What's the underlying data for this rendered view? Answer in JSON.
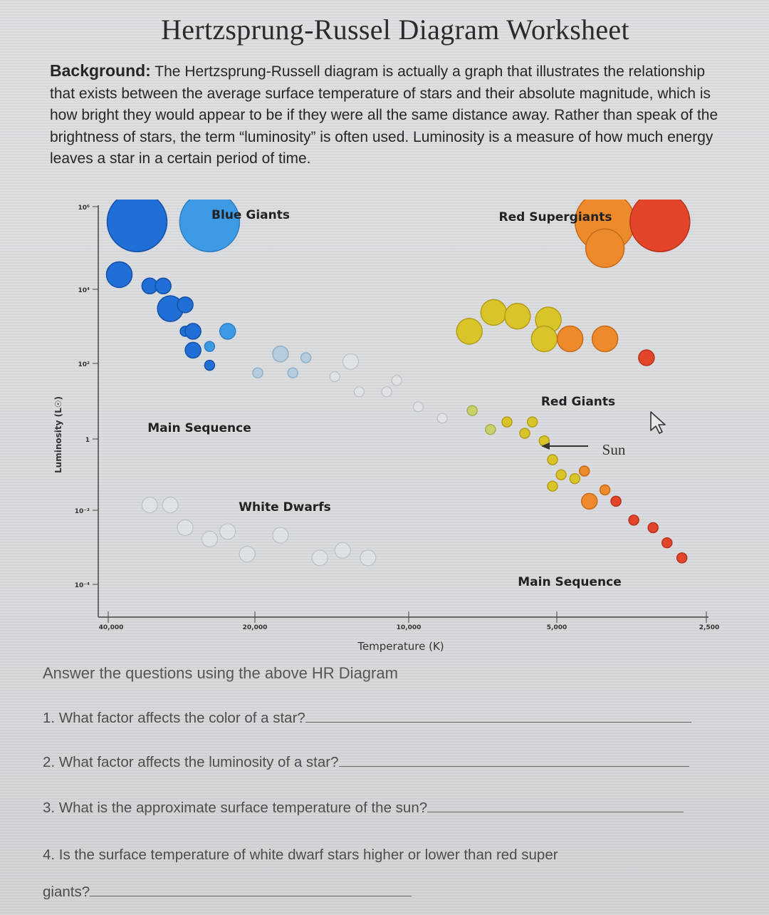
{
  "worksheet": {
    "title": "Hertzsprung-Russel Diagram Worksheet",
    "background_label": "Background:",
    "background_text": " The Hertzsprung-Russell diagram is actually a graph that illustrates the relationship that exists between the average surface temperature of stars and their absolute magnitude, which is how bright they would appear to be if they were all the same distance away. Rather than speak of the brightness of stars, the term “luminosity” is often used. Luminosity is a measure of how much energy leaves a star in a certain period of time.",
    "answer_intro": "Answer the questions using the above HR Diagram",
    "questions": [
      "1. What factor affects the color of a star?",
      "2. What factor affects the luminosity of a star?",
      "3. What is the approximate surface temperature of the sun?",
      "4. Is the surface temperature of white dwarf stars higher or lower than red super",
      "giants?"
    ]
  },
  "chart_data": {
    "type": "scatter",
    "xlabel": "Temperature (K)",
    "ylabel": "Luminosity (L☉)",
    "x_ticks": [
      "40,000",
      "20,000",
      "10,000",
      "5,000",
      "2,500"
    ],
    "y_ticks": [
      "10⁶",
      "10⁴",
      "10²",
      "1",
      "10⁻²",
      "10⁻⁴"
    ],
    "x_reversed": true,
    "y_scale": "log",
    "annotations": [
      "Blue Giants",
      "Red Supergiants",
      "Main Sequence",
      "Red Giants",
      "Sun",
      "White Dwarfs",
      "Main Sequence"
    ],
    "colors": {
      "blue": "#1f6fd6",
      "light_blue": "#3d9be6",
      "faint_blue": "#a8c6dd",
      "white": "#e8edf0",
      "yellow_green": "#c9d16a",
      "yellow": "#d9c52a",
      "orange": "#ec8a2c",
      "red": "#e2452a"
    },
    "stars": [
      {
        "temp": 35000,
        "lum_exp": 5.6,
        "color": "blue",
        "size": "giant"
      },
      {
        "temp": 25000,
        "lum_exp": 5.6,
        "color": "light_blue",
        "size": "giant"
      },
      {
        "temp": 4000,
        "lum_exp": 5.6,
        "color": "orange",
        "size": "giant"
      },
      {
        "temp": 3100,
        "lum_exp": 5.6,
        "color": "red",
        "size": "giant"
      },
      {
        "temp": 4000,
        "lum_exp": 4.9,
        "color": "orange",
        "size": "large"
      },
      {
        "temp": 38000,
        "lum_exp": 4.2,
        "color": "blue",
        "size": "med"
      },
      {
        "temp": 33000,
        "lum_exp": 3.9,
        "color": "blue",
        "size": "small"
      },
      {
        "temp": 31000,
        "lum_exp": 3.9,
        "color": "blue",
        "size": "small"
      },
      {
        "temp": 30000,
        "lum_exp": 3.3,
        "color": "blue",
        "size": "med"
      },
      {
        "temp": 28000,
        "lum_exp": 3.4,
        "color": "blue",
        "size": "small"
      },
      {
        "temp": 28000,
        "lum_exp": 2.7,
        "color": "blue",
        "size": "xsmall"
      },
      {
        "temp": 27000,
        "lum_exp": 2.7,
        "color": "blue",
        "size": "small"
      },
      {
        "temp": 23000,
        "lum_exp": 2.7,
        "color": "light_blue",
        "size": "small"
      },
      {
        "temp": 27000,
        "lum_exp": 2.2,
        "color": "blue",
        "size": "small"
      },
      {
        "temp": 25000,
        "lum_exp": 2.3,
        "color": "light_blue",
        "size": "xsmall"
      },
      {
        "temp": 25000,
        "lum_exp": 1.8,
        "color": "blue",
        "size": "xsmall"
      },
      {
        "temp": 20000,
        "lum_exp": 1.6,
        "color": "faint_blue",
        "size": "xsmall"
      },
      {
        "temp": 18000,
        "lum_exp": 2.1,
        "color": "faint_blue",
        "size": "small"
      },
      {
        "temp": 17000,
        "lum_exp": 1.6,
        "color": "faint_blue",
        "size": "xsmall"
      },
      {
        "temp": 16000,
        "lum_exp": 2.0,
        "color": "faint_blue",
        "size": "xsmall"
      },
      {
        "temp": 14000,
        "lum_exp": 1.5,
        "color": "white",
        "size": "xsmall"
      },
      {
        "temp": 13000,
        "lum_exp": 1.9,
        "color": "white",
        "size": "small"
      },
      {
        "temp": 12500,
        "lum_exp": 1.1,
        "color": "white",
        "size": "xsmall"
      },
      {
        "temp": 11000,
        "lum_exp": 1.1,
        "color": "white",
        "size": "xsmall"
      },
      {
        "temp": 10500,
        "lum_exp": 1.4,
        "color": "white",
        "size": "xsmall"
      },
      {
        "temp": 9500,
        "lum_exp": 0.7,
        "color": "white",
        "size": "xsmall"
      },
      {
        "temp": 8500,
        "lum_exp": 0.4,
        "color": "white",
        "size": "xsmall"
      },
      {
        "temp": 7500,
        "lum_exp": 2.7,
        "color": "yellow",
        "size": "med"
      },
      {
        "temp": 6700,
        "lum_exp": 3.2,
        "color": "yellow",
        "size": "med"
      },
      {
        "temp": 6000,
        "lum_exp": 3.1,
        "color": "yellow",
        "size": "med"
      },
      {
        "temp": 5200,
        "lum_exp": 3.0,
        "color": "yellow",
        "size": "med"
      },
      {
        "temp": 5300,
        "lum_exp": 2.5,
        "color": "yellow",
        "size": "med"
      },
      {
        "temp": 4700,
        "lum_exp": 2.5,
        "color": "orange",
        "size": "med"
      },
      {
        "temp": 4000,
        "lum_exp": 2.5,
        "color": "orange",
        "size": "med"
      },
      {
        "temp": 3300,
        "lum_exp": 2.0,
        "color": "red",
        "size": "small"
      },
      {
        "temp": 7400,
        "lum_exp": 0.6,
        "color": "yellow_green",
        "size": "xsmall"
      },
      {
        "temp": 6800,
        "lum_exp": 0.1,
        "color": "yellow_green",
        "size": "xsmall"
      },
      {
        "temp": 6300,
        "lum_exp": 0.3,
        "color": "yellow",
        "size": "xsmall"
      },
      {
        "temp": 5800,
        "lum_exp": 0.0,
        "color": "yellow",
        "size": "xsmall"
      },
      {
        "temp": 5600,
        "lum_exp": 0.3,
        "color": "yellow",
        "size": "xsmall"
      },
      {
        "temp": 5300,
        "lum_exp": -0.2,
        "color": "yellow",
        "size": "xsmall"
      },
      {
        "temp": 5100,
        "lum_exp": -0.7,
        "color": "yellow",
        "size": "xsmall"
      },
      {
        "temp": 4900,
        "lum_exp": -1.1,
        "color": "yellow",
        "size": "xsmall"
      },
      {
        "temp": 5100,
        "lum_exp": -1.4,
        "color": "yellow",
        "size": "xsmall"
      },
      {
        "temp": 4600,
        "lum_exp": -1.2,
        "color": "yellow",
        "size": "xsmall"
      },
      {
        "temp": 4400,
        "lum_exp": -1.0,
        "color": "orange",
        "size": "xsmall"
      },
      {
        "temp": 4300,
        "lum_exp": -1.8,
        "color": "orange",
        "size": "small"
      },
      {
        "temp": 4000,
        "lum_exp": -1.5,
        "color": "orange",
        "size": "xsmall"
      },
      {
        "temp": 3800,
        "lum_exp": -1.8,
        "color": "red",
        "size": "xsmall"
      },
      {
        "temp": 3500,
        "lum_exp": -2.3,
        "color": "red",
        "size": "xsmall"
      },
      {
        "temp": 3200,
        "lum_exp": -2.5,
        "color": "red",
        "size": "xsmall"
      },
      {
        "temp": 3000,
        "lum_exp": -2.9,
        "color": "red",
        "size": "xsmall"
      },
      {
        "temp": 2800,
        "lum_exp": -3.3,
        "color": "red",
        "size": "xsmall"
      },
      {
        "temp": 33000,
        "lum_exp": -1.9,
        "color": "white",
        "size": "small"
      },
      {
        "temp": 30000,
        "lum_exp": -1.9,
        "color": "white",
        "size": "small"
      },
      {
        "temp": 28000,
        "lum_exp": -2.5,
        "color": "white",
        "size": "small"
      },
      {
        "temp": 25000,
        "lum_exp": -2.8,
        "color": "white",
        "size": "small"
      },
      {
        "temp": 23000,
        "lum_exp": -2.6,
        "color": "white",
        "size": "small"
      },
      {
        "temp": 21000,
        "lum_exp": -3.2,
        "color": "white",
        "size": "small"
      },
      {
        "temp": 18000,
        "lum_exp": -2.7,
        "color": "white",
        "size": "small"
      },
      {
        "temp": 15000,
        "lum_exp": -3.3,
        "color": "white",
        "size": "small"
      },
      {
        "temp": 13500,
        "lum_exp": -3.1,
        "color": "white",
        "size": "small"
      },
      {
        "temp": 12000,
        "lum_exp": -3.3,
        "color": "white",
        "size": "small"
      }
    ]
  }
}
